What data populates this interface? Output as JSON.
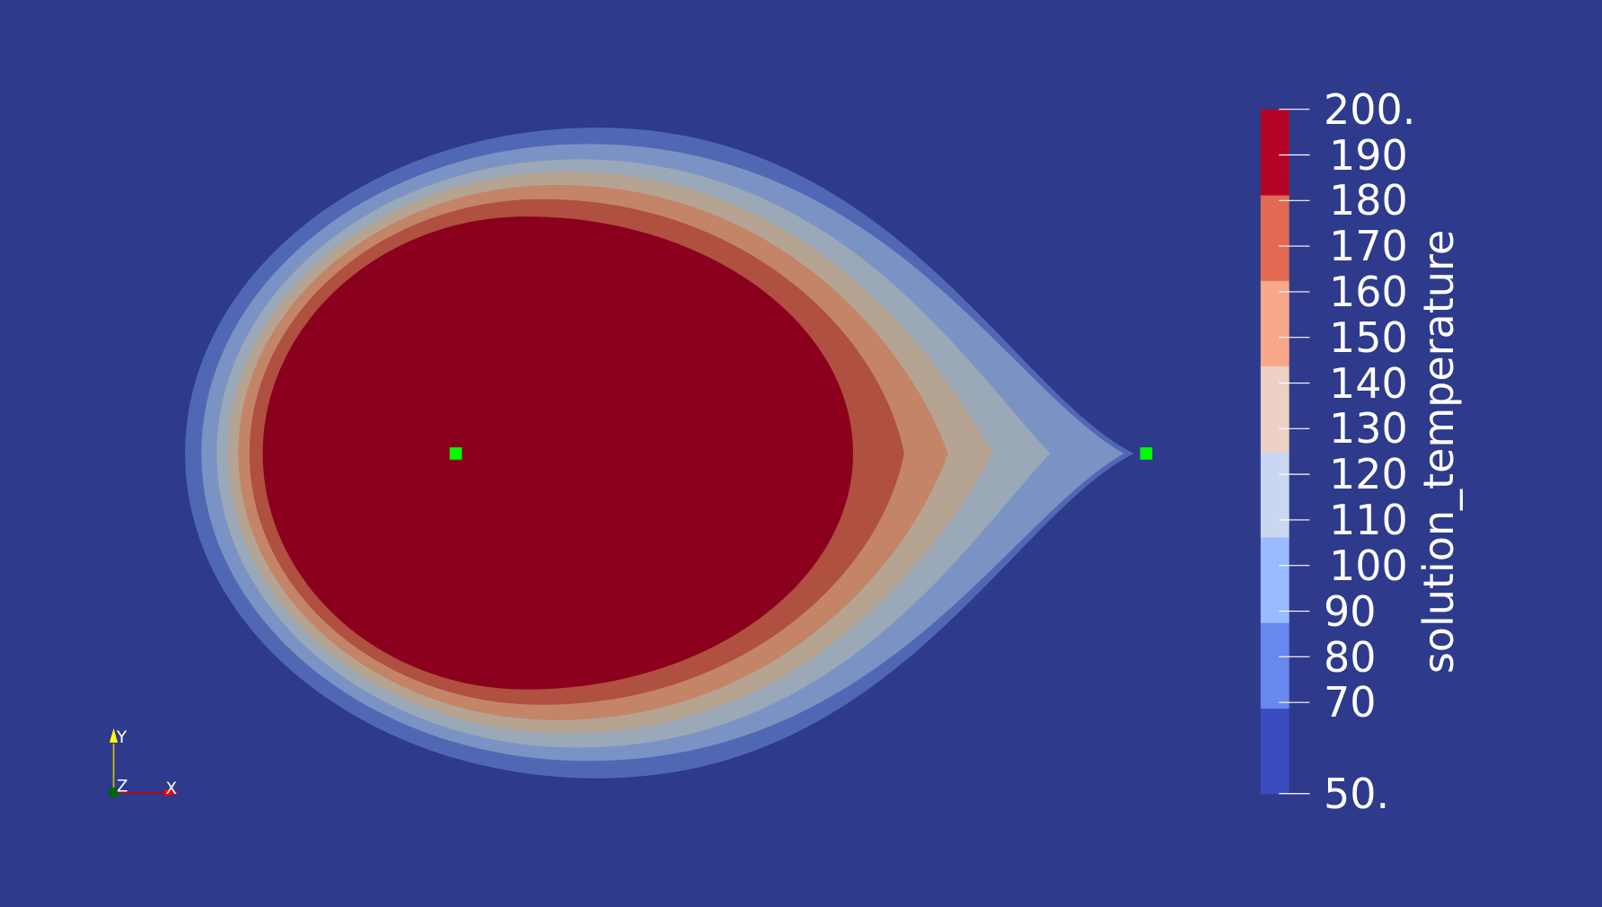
{
  "background_color": "#2e3a8c",
  "colorbar": {
    "title": "solution_temperature",
    "range": [
      50,
      200
    ],
    "tick_labels": [
      "200.",
      "190",
      "180",
      "170",
      "160",
      "150",
      "140",
      "130",
      "120",
      "110",
      "100",
      "90",
      "80",
      "70",
      "50."
    ],
    "tick_values": [
      200,
      190,
      180,
      170,
      160,
      150,
      140,
      130,
      120,
      110,
      100,
      90,
      80,
      70,
      50
    ],
    "band_colors": [
      "#3b4cc0",
      "#6788ee",
      "#9abbff",
      "#c9d7f0",
      "#edd1c2",
      "#f7a889",
      "#e26952",
      "#b40426"
    ]
  },
  "contour_layers": {
    "colors": [
      "#5068b4",
      "#7b93c4",
      "#9aa8b8",
      "#b6a493",
      "#c48468",
      "#b05040",
      "#8b001d"
    ]
  },
  "markers": {
    "color": "#00ff00"
  },
  "axes_triad": {
    "x_label": "X",
    "y_label": "Y",
    "z_label": "Z",
    "x_color": "#ff0000",
    "y_color": "#ffff00",
    "z_color": "#006400"
  }
}
